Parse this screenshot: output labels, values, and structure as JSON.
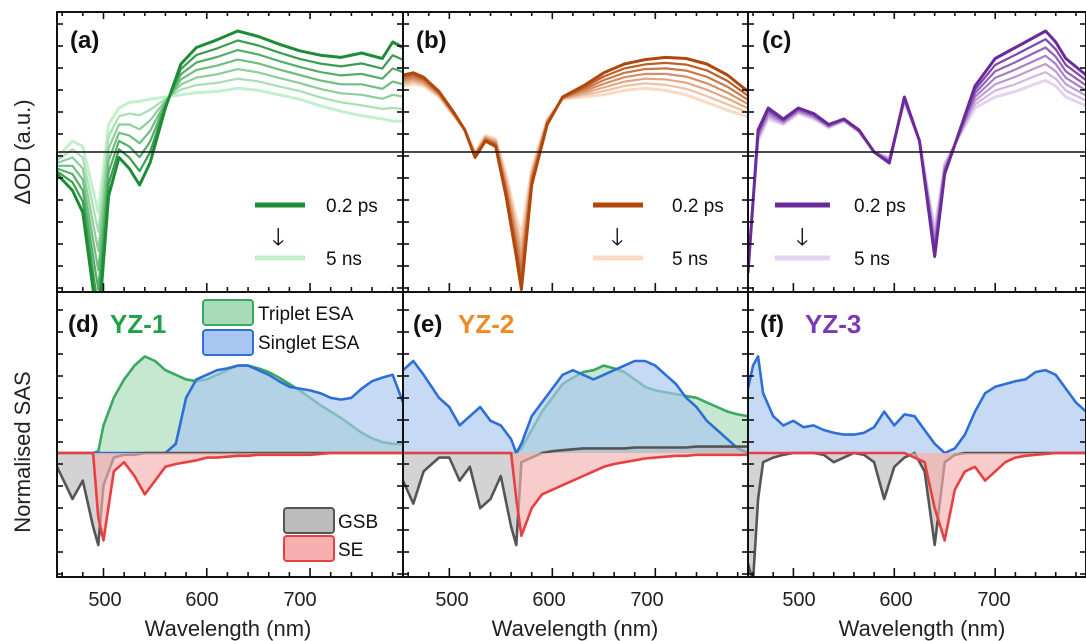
{
  "figure": {
    "y_label_top": "ΔOD (a.u.)",
    "y_label_bottom": "Normalised SAS",
    "x_label": "Wavelength (nm)",
    "x_ticks": [
      "500",
      "600",
      "700"
    ]
  },
  "chart_data": [
    {
      "type": "line",
      "panel": "(a)",
      "xlabel": "Wavelength (nm)",
      "ylabel": "ΔOD (a.u.)",
      "xlim": [
        455,
        790
      ],
      "legend": [
        "0.2 ps",
        "5 ns"
      ],
      "colors": {
        "early": "#1e8c36",
        "late": "#c4efcc"
      },
      "x": [
        455,
        470,
        480,
        495,
        505,
        515,
        525,
        535,
        545,
        560,
        575,
        590,
        610,
        630,
        650,
        670,
        690,
        710,
        730,
        750,
        770,
        780,
        790
      ],
      "series": [
        {
          "name": "0.2 ps",
          "values": [
            -0.2,
            -0.35,
            -0.55,
            -1.6,
            -0.4,
            -0.05,
            -0.15,
            -0.3,
            -0.1,
            0.4,
            0.8,
            0.95,
            1.02,
            1.1,
            1.05,
            0.98,
            0.92,
            0.88,
            0.86,
            0.9,
            0.85,
            1.0,
            0.95
          ]
        },
        {
          "name": "5 ns",
          "values": [
            -0.05,
            0.1,
            0.05,
            -0.55,
            0.25,
            0.4,
            0.45,
            0.46,
            0.48,
            0.5,
            0.52,
            0.54,
            0.55,
            0.58,
            0.56,
            0.52,
            0.48,
            0.42,
            0.37,
            0.33,
            0.3,
            0.28,
            0.28
          ]
        }
      ]
    },
    {
      "type": "line",
      "panel": "(b)",
      "xlabel": "Wavelength (nm)",
      "xlim": [
        455,
        790
      ],
      "legend": [
        "0.2 ps",
        "5 ns"
      ],
      "colors": {
        "early": "#b0470b",
        "late": "#fbd9c2"
      },
      "x": [
        455,
        465,
        475,
        490,
        505,
        515,
        525,
        535,
        545,
        555,
        565,
        570,
        580,
        595,
        610,
        630,
        650,
        670,
        690,
        710,
        730,
        750,
        770,
        790
      ],
      "series": [
        {
          "name": "0.2 ps",
          "values": [
            0.7,
            0.72,
            0.68,
            0.55,
            0.35,
            0.2,
            -0.05,
            0.1,
            0.05,
            -0.4,
            -0.95,
            -1.25,
            -0.3,
            0.25,
            0.5,
            0.6,
            0.72,
            0.8,
            0.84,
            0.86,
            0.85,
            0.8,
            0.7,
            0.55
          ]
        },
        {
          "name": "5 ns",
          "values": [
            0.6,
            0.62,
            0.6,
            0.5,
            0.32,
            0.2,
            0.0,
            0.15,
            0.12,
            -0.2,
            -0.6,
            -0.75,
            -0.15,
            0.3,
            0.48,
            0.5,
            0.52,
            0.56,
            0.58,
            0.56,
            0.52,
            0.45,
            0.38,
            0.32
          ]
        }
      ]
    },
    {
      "type": "line",
      "panel": "(c)",
      "xlabel": "Wavelength (nm)",
      "xlim": [
        455,
        790
      ],
      "legend": [
        "0.2 ps",
        "5 ns"
      ],
      "colors": {
        "early": "#6a2a9a",
        "late": "#e4d4f2"
      },
      "x": [
        455,
        465,
        475,
        490,
        505,
        520,
        535,
        550,
        565,
        580,
        595,
        610,
        625,
        640,
        650,
        665,
        680,
        700,
        720,
        740,
        750,
        760,
        770,
        790
      ],
      "series": [
        {
          "name": "0.2 ps",
          "values": [
            -1.1,
            0.2,
            0.4,
            0.3,
            0.4,
            0.35,
            0.25,
            0.3,
            0.2,
            0.0,
            -0.1,
            0.5,
            0.1,
            -0.95,
            -0.2,
            0.2,
            0.6,
            0.85,
            0.95,
            1.05,
            1.1,
            1.0,
            0.85,
            0.7
          ]
        },
        {
          "name": "5 ns",
          "values": [
            -1.0,
            0.1,
            0.3,
            0.25,
            0.35,
            0.3,
            0.22,
            0.28,
            0.18,
            0.0,
            -0.05,
            0.45,
            0.1,
            -0.7,
            -0.1,
            0.15,
            0.4,
            0.5,
            0.55,
            0.62,
            0.65,
            0.6,
            0.5,
            0.42
          ]
        }
      ]
    },
    {
      "type": "area",
      "panel": "(d)",
      "title": "YZ-1",
      "ylabel": "Normalised SAS",
      "xlabel": "Wavelength (nm)",
      "xlim": [
        455,
        790
      ],
      "legend": [
        "Triplet ESA",
        "Singlet ESA",
        "GSB",
        "SE"
      ],
      "x": [
        455,
        470,
        480,
        490,
        495,
        500,
        510,
        520,
        530,
        540,
        550,
        560,
        570,
        580,
        590,
        600,
        610,
        620,
        630,
        640,
        650,
        660,
        670,
        680,
        690,
        700,
        710,
        720,
        730,
        740,
        750,
        760,
        770,
        780,
        790
      ],
      "series": [
        {
          "name": "Triplet ESA",
          "values": [
            0,
            0,
            0,
            0,
            0.02,
            0.3,
            0.6,
            0.8,
            0.95,
            1.05,
            1.0,
            0.9,
            0.85,
            0.8,
            0.78,
            0.8,
            0.85,
            0.9,
            0.95,
            0.95,
            0.92,
            0.88,
            0.82,
            0.75,
            0.68,
            0.6,
            0.52,
            0.45,
            0.38,
            0.3,
            0.22,
            0.16,
            0.12,
            0.1,
            0.1
          ]
        },
        {
          "name": "Singlet ESA",
          "values": [
            0,
            0,
            0,
            0,
            0,
            0,
            0,
            0,
            0,
            0,
            0,
            0,
            0.1,
            0.6,
            0.8,
            0.85,
            0.9,
            0.92,
            0.95,
            0.95,
            0.9,
            0.85,
            0.78,
            0.72,
            0.7,
            0.68,
            0.65,
            0.6,
            0.58,
            0.6,
            0.7,
            0.78,
            0.82,
            0.85,
            0.55
          ]
        },
        {
          "name": "GSB",
          "values": [
            -0.15,
            -0.5,
            -0.3,
            -0.8,
            -1.0,
            -0.35,
            -0.05,
            -0.02,
            -0.02,
            0,
            0,
            0,
            0,
            0,
            0,
            0,
            0,
            0,
            0,
            0,
            0,
            0,
            0,
            0,
            0,
            0,
            0,
            0,
            0,
            0,
            0,
            0,
            0,
            0,
            0
          ]
        },
        {
          "name": "SE",
          "values": [
            0,
            0,
            0,
            0,
            -0.7,
            -0.95,
            -0.2,
            -0.1,
            -0.25,
            -0.45,
            -0.3,
            -0.15,
            -0.12,
            -0.1,
            -0.08,
            -0.05,
            -0.05,
            -0.04,
            -0.03,
            -0.03,
            -0.02,
            -0.02,
            -0.02,
            -0.02,
            -0.02,
            -0.02,
            -0.01,
            0,
            0,
            0,
            0,
            0,
            0,
            0,
            0
          ]
        }
      ]
    },
    {
      "type": "area",
      "panel": "(e)",
      "title": "YZ-2",
      "xlabel": "Wavelength (nm)",
      "xlim": [
        455,
        790
      ],
      "x": [
        455,
        465,
        475,
        490,
        500,
        510,
        520,
        530,
        540,
        550,
        560,
        565,
        570,
        580,
        590,
        600,
        610,
        620,
        630,
        640,
        650,
        660,
        670,
        680,
        690,
        700,
        710,
        720,
        730,
        740,
        750,
        760,
        770,
        780,
        790
      ],
      "series": [
        {
          "name": "Triplet ESA",
          "values": [
            0,
            0,
            0,
            0,
            0,
            0,
            0,
            0,
            0,
            0,
            0,
            0,
            0.05,
            0.25,
            0.45,
            0.6,
            0.75,
            0.82,
            0.88,
            0.9,
            0.95,
            0.92,
            0.88,
            0.8,
            0.72,
            0.68,
            0.66,
            0.64,
            0.62,
            0.6,
            0.55,
            0.5,
            0.45,
            0.42,
            0.4
          ]
        },
        {
          "name": "Singlet ESA",
          "values": [
            0.9,
            1.0,
            0.85,
            0.6,
            0.5,
            0.3,
            0.4,
            0.5,
            0.35,
            0.3,
            0.15,
            0,
            0.1,
            0.4,
            0.55,
            0.7,
            0.85,
            0.9,
            0.85,
            0.8,
            0.85,
            0.9,
            0.95,
            1.0,
            1.0,
            0.95,
            0.85,
            0.75,
            0.6,
            0.5,
            0.35,
            0.25,
            0.15,
            0.05,
            0
          ]
        },
        {
          "name": "GSB",
          "values": [
            -0.3,
            -0.55,
            -0.2,
            -0.05,
            -0.05,
            -0.3,
            -0.15,
            -0.6,
            -0.5,
            -0.25,
            -0.8,
            -1.0,
            -0.1,
            -0.05,
            0,
            0.02,
            0.03,
            0.04,
            0.05,
            0.05,
            0.05,
            0.05,
            0.05,
            0.06,
            0.06,
            0.06,
            0.06,
            0.06,
            0.06,
            0.07,
            0.07,
            0.07,
            0.07,
            0.07,
            0.07
          ]
        },
        {
          "name": "SE",
          "values": [
            0,
            0,
            0,
            0,
            0,
            0,
            0,
            0,
            0,
            0,
            0,
            -0.5,
            -0.9,
            -0.6,
            -0.45,
            -0.4,
            -0.35,
            -0.3,
            -0.25,
            -0.2,
            -0.15,
            -0.12,
            -0.1,
            -0.08,
            -0.06,
            -0.05,
            -0.04,
            -0.03,
            -0.03,
            -0.02,
            -0.02,
            -0.02,
            -0.02,
            -0.02,
            -0.02
          ]
        }
      ]
    },
    {
      "type": "area",
      "panel": "(f)",
      "title": "YZ-3",
      "xlabel": "Wavelength (nm)",
      "xlim": [
        455,
        790
      ],
      "x": [
        455,
        460,
        465,
        470,
        480,
        490,
        500,
        510,
        520,
        530,
        540,
        550,
        560,
        570,
        580,
        590,
        600,
        610,
        620,
        630,
        640,
        650,
        660,
        670,
        680,
        690,
        700,
        710,
        720,
        730,
        740,
        750,
        760,
        770,
        780,
        790
      ],
      "series": [
        {
          "name": "Singlet ESA",
          "values": [
            0.7,
            0.95,
            1.05,
            0.65,
            0.4,
            0.3,
            0.35,
            0.28,
            0.3,
            0.25,
            0.22,
            0.2,
            0.2,
            0.22,
            0.28,
            0.45,
            0.3,
            0.42,
            0.4,
            0.25,
            0.1,
            0,
            0.05,
            0.2,
            0.45,
            0.65,
            0.72,
            0.75,
            0.78,
            0.8,
            0.88,
            0.9,
            0.85,
            0.7,
            0.55,
            0.45
          ]
        },
        {
          "name": "GSB",
          "values": [
            -1.2,
            -1.4,
            -0.5,
            -0.1,
            -0.05,
            -0.02,
            0,
            0,
            0,
            -0.02,
            -0.1,
            -0.05,
            0,
            -0.02,
            -0.1,
            -0.5,
            -0.15,
            -0.05,
            0,
            -0.2,
            -1.0,
            -0.1,
            -0.02,
            0,
            0,
            0,
            0,
            0,
            0,
            0,
            0,
            0,
            0,
            0,
            0,
            0
          ]
        },
        {
          "name": "SE",
          "values": [
            0,
            0,
            0,
            0,
            0,
            0,
            0,
            0,
            0,
            0,
            0,
            0,
            0,
            0,
            0,
            0,
            0,
            0,
            -0.05,
            -0.1,
            -0.6,
            -0.95,
            -0.4,
            -0.2,
            -0.15,
            -0.3,
            -0.2,
            -0.1,
            -0.05,
            -0.03,
            -0.02,
            -0.01,
            0,
            0,
            0,
            0
          ]
        }
      ]
    }
  ],
  "panels_top": [
    {
      "letter": "(a)",
      "legend_early": "0.2 ps",
      "legend_late": "5 ns",
      "arrow": "🡓"
    },
    {
      "letter": "(b)",
      "legend_early": "0.2 ps",
      "legend_late": "5 ns",
      "arrow": "🡓"
    },
    {
      "letter": "(c)",
      "legend_early": "0.2 ps",
      "legend_late": "5 ns",
      "arrow": "🡓"
    }
  ],
  "panels_bottom": [
    {
      "letter": "(d)",
      "compound": "YZ-1",
      "color": "#1fa24a"
    },
    {
      "letter": "(e)",
      "compound": "YZ-2",
      "color": "#f08a24"
    },
    {
      "letter": "(f)",
      "compound": "YZ-3",
      "color": "#7a3ab5"
    }
  ],
  "sas_legend": {
    "triplet": "Triplet ESA",
    "singlet": "Singlet ESA",
    "gsb": "GSB",
    "se": "SE"
  },
  "sas_colors": {
    "triplet": "#3aa860",
    "singlet": "#2e6fd6",
    "gsb": "#555555",
    "se": "#e84040"
  }
}
